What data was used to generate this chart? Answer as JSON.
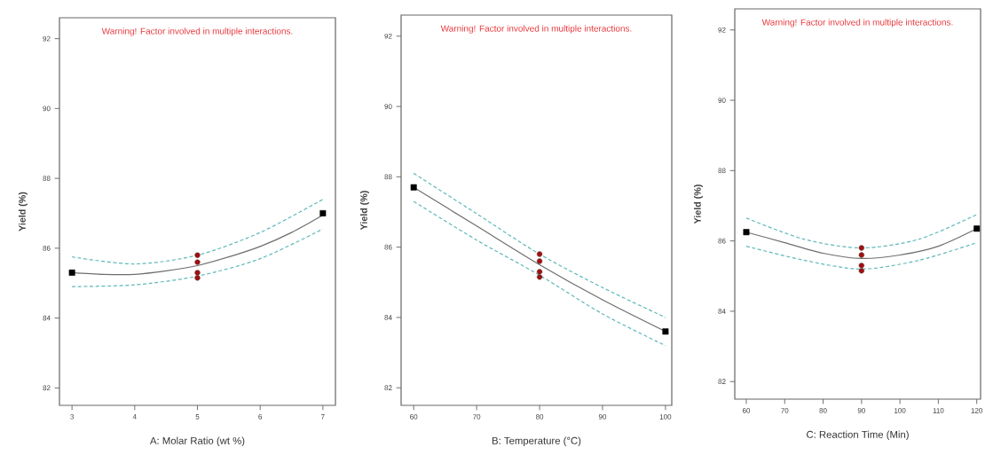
{
  "chart_data": [
    {
      "type": "line",
      "annotations": [
        "Warning! Factor involved in multiple interactions."
      ],
      "xlabel": "A: Molar Ratio (wt %)",
      "ylabel": "Yield (%)",
      "xlim": [
        2.8,
        7.2
      ],
      "ylim": [
        81.5,
        92.6
      ],
      "xticks": [
        3,
        4,
        5,
        6,
        7
      ],
      "yticks": [
        82,
        84,
        86,
        88,
        90,
        92
      ],
      "series": [
        {
          "color": "#6e6e6e",
          "line_style": "solid",
          "marker": "none",
          "x": [
            3,
            3.5,
            4,
            4.5,
            5,
            5.5,
            6,
            6.5,
            7
          ],
          "values": [
            85.3,
            85.25,
            85.25,
            85.35,
            85.5,
            85.75,
            86.05,
            86.45,
            86.95
          ]
        },
        {
          "color": "#5fb8b8",
          "line_style": "dashed",
          "marker": "none",
          "x": [
            3,
            4,
            5,
            6,
            7
          ],
          "values": [
            85.75,
            85.55,
            85.8,
            86.45,
            87.4
          ]
        },
        {
          "color": "#5fb8b8",
          "line_style": "dashed",
          "marker": "none",
          "x": [
            3,
            4,
            5,
            6,
            7
          ],
          "values": [
            84.9,
            84.95,
            85.2,
            85.7,
            86.55
          ]
        },
        {
          "type": "scatter",
          "color": "#000000",
          "marker": "square",
          "x": [
            3,
            7
          ],
          "values": [
            85.3,
            87.0
          ]
        },
        {
          "type": "scatter",
          "color": "#a01010",
          "marker": "circle",
          "x": [
            5,
            5,
            5,
            5
          ],
          "values": [
            85.8,
            85.6,
            85.3,
            85.15
          ]
        }
      ]
    },
    {
      "type": "line",
      "annotations": [
        "Warning! Factor involved in multiple interactions."
      ],
      "xlabel": "B: Temperature (°C)",
      "ylabel": "Yield (%)",
      "xlim": [
        58,
        101
      ],
      "ylim": [
        81.5,
        92.6
      ],
      "xticks": [
        60,
        70,
        80,
        90,
        100
      ],
      "yticks": [
        82,
        84,
        86,
        88,
        90,
        92
      ],
      "series": [
        {
          "color": "#6e6e6e",
          "line_style": "solid",
          "marker": "none",
          "x": [
            60,
            70,
            80,
            90,
            100
          ],
          "values": [
            87.7,
            86.6,
            85.5,
            84.5,
            83.6
          ]
        },
        {
          "color": "#5fb8b8",
          "line_style": "dashed",
          "marker": "none",
          "x": [
            60,
            70,
            80,
            90,
            100
          ],
          "values": [
            88.1,
            86.95,
            85.8,
            84.85,
            84.0
          ]
        },
        {
          "color": "#5fb8b8",
          "line_style": "dashed",
          "marker": "none",
          "x": [
            60,
            70,
            80,
            90,
            100
          ],
          "values": [
            87.3,
            86.2,
            85.2,
            84.1,
            83.2
          ]
        },
        {
          "type": "scatter",
          "color": "#000000",
          "marker": "square",
          "x": [
            60,
            100
          ],
          "values": [
            87.7,
            83.6
          ]
        },
        {
          "type": "scatter",
          "color": "#a01010",
          "marker": "circle",
          "x": [
            80,
            80,
            80,
            80
          ],
          "values": [
            85.8,
            85.6,
            85.3,
            85.15
          ]
        }
      ]
    },
    {
      "type": "line",
      "annotations": [
        "Warning! Factor involved in multiple interactions."
      ],
      "xlabel": "C: Reaction Time (Min)",
      "ylabel": "Yield (%)",
      "xlim": [
        57,
        121
      ],
      "ylim": [
        81.5,
        92.6
      ],
      "xticks": [
        60,
        70,
        80,
        90,
        100,
        110,
        120
      ],
      "yticks": [
        82,
        84,
        86,
        88,
        90,
        92
      ],
      "series": [
        {
          "color": "#6e6e6e",
          "line_style": "solid",
          "marker": "none",
          "x": [
            60,
            70,
            80,
            90,
            100,
            110,
            120
          ],
          "values": [
            86.25,
            85.95,
            85.65,
            85.5,
            85.6,
            85.85,
            86.35
          ]
        },
        {
          "color": "#5fb8b8",
          "line_style": "dashed",
          "marker": "none",
          "x": [
            60,
            75,
            90,
            105,
            120
          ],
          "values": [
            86.65,
            86.05,
            85.8,
            86.05,
            86.75
          ]
        },
        {
          "color": "#5fb8b8",
          "line_style": "dashed",
          "marker": "none",
          "x": [
            60,
            75,
            90,
            105,
            120
          ],
          "values": [
            85.85,
            85.45,
            85.2,
            85.45,
            85.95
          ]
        },
        {
          "type": "scatter",
          "color": "#000000",
          "marker": "square",
          "x": [
            60,
            120
          ],
          "values": [
            86.25,
            86.35
          ]
        },
        {
          "type": "scatter",
          "color": "#a01010",
          "marker": "circle",
          "x": [
            90,
            90,
            90,
            90
          ],
          "values": [
            85.8,
            85.6,
            85.3,
            85.15
          ]
        }
      ]
    }
  ]
}
